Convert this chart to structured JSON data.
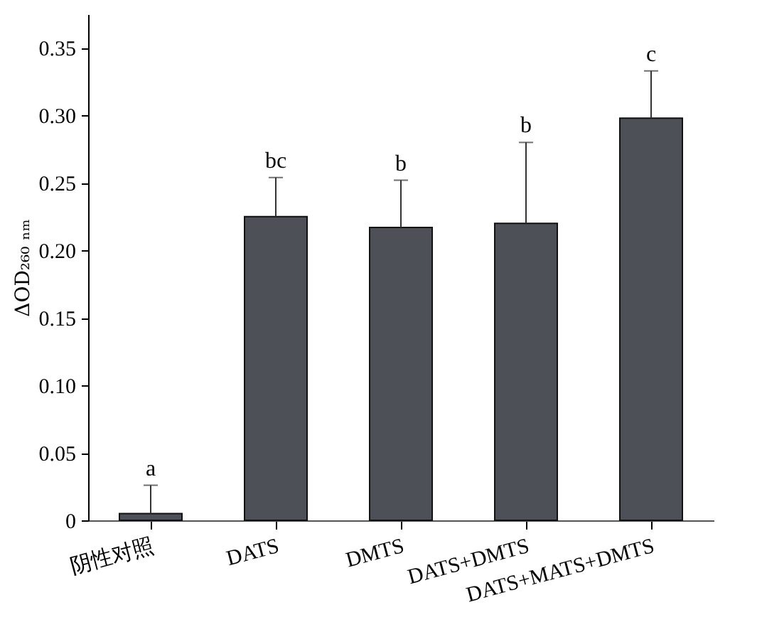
{
  "chart_data": {
    "type": "bar",
    "categories": [
      "阴性对照",
      "DATS",
      "DMTS",
      "DATS+DMTS",
      "DATS+MATS+DMTS"
    ],
    "values": [
      0.005,
      0.225,
      0.217,
      0.22,
      0.298
    ],
    "errors": [
      [
        0.005,
        0.026
      ],
      [
        0.225,
        0.254
      ],
      [
        0.217,
        0.252
      ],
      [
        0.22,
        0.28
      ],
      [
        0.298,
        0.333
      ]
    ],
    "color": "#4d5157",
    "ylabel": "ΔOD₂₆₀ ₙₘ",
    "ylim": [
      0,
      0.375
    ],
    "yticks": [
      0,
      {
        "value": 0.05,
        "label": "0.05"
      },
      {
        "value": 0.1,
        "label": "0.10"
      },
      {
        "value": 0.15,
        "label": "0.15"
      },
      {
        "value": 0.2,
        "label": "0.20"
      },
      {
        "value": 0.25,
        "label": "0.25"
      },
      {
        "value": 0.3,
        "label": "0.30"
      },
      {
        "value": 0.35,
        "label": "0.35"
      }
    ],
    "annotations": [
      {
        "text": "a",
        "x": "阴性对照",
        "y": 0.026
      },
      {
        "text": "bc",
        "x": "DATS",
        "y": 0.254
      },
      {
        "text": "b",
        "x": "DMTS",
        "y": 0.252
      },
      {
        "text": "b",
        "x": "DATS+DMTS",
        "y": 0.28
      },
      {
        "text": "c",
        "x": "DATS+MATS+DMTS",
        "y": 0.333
      }
    ],
    "grid": false
  }
}
